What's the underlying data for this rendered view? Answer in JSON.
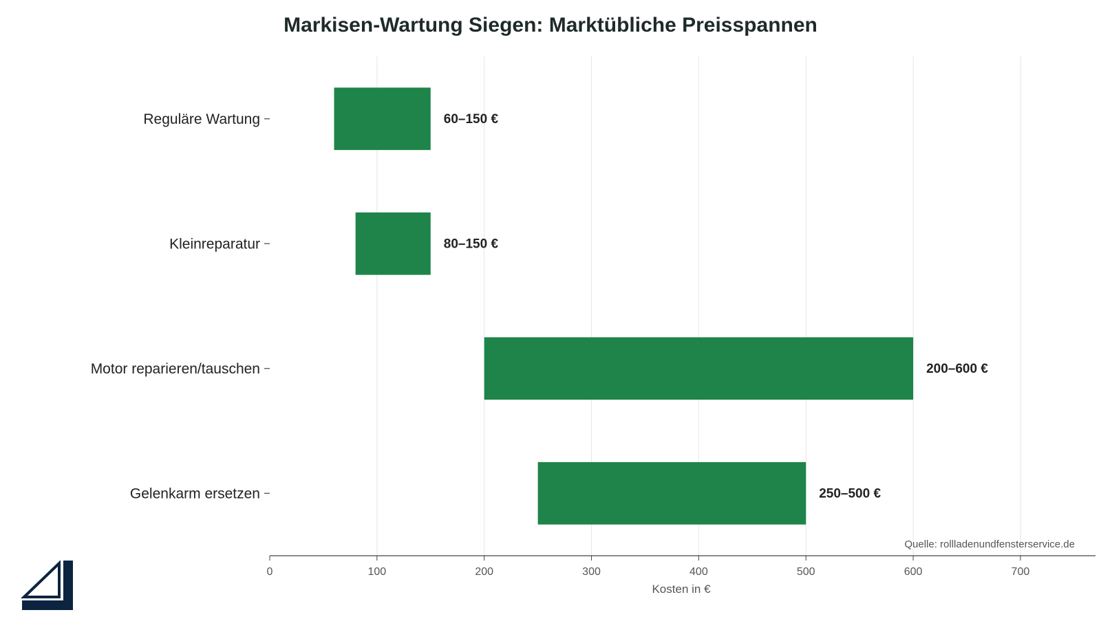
{
  "chart_data": {
    "type": "bar",
    "orientation": "horizontal",
    "title": "Markisen-Wartung Siegen: Marktübliche Preisspannen",
    "xlabel": "Kosten in €",
    "ylabel": "",
    "xlim": [
      0,
      770
    ],
    "xticks": [
      0,
      100,
      200,
      300,
      400,
      500,
      600,
      700
    ],
    "grid": "vertical",
    "categories": [
      "Reguläre Wartung",
      "Kleinreparatur",
      "Motor reparieren/tauschen",
      "Gelenkarm ersetzen"
    ],
    "ranges": [
      {
        "category": "Reguläre Wartung",
        "min": 60,
        "max": 150,
        "label": "60–150 €"
      },
      {
        "category": "Kleinreparatur",
        "min": 80,
        "max": 150,
        "label": "80–150 €"
      },
      {
        "category": "Motor reparieren/tauschen",
        "min": 200,
        "max": 600,
        "label": "200–600 €"
      },
      {
        "category": "Gelenkarm ersetzen",
        "min": 250,
        "max": 500,
        "label": "250–500 €"
      }
    ],
    "bar_color": "#1e8449",
    "source": "Quelle: rollladenundfensterservice.de"
  },
  "logo": {
    "icon": "window-frame-logo-icon",
    "color": "#0d2440"
  }
}
